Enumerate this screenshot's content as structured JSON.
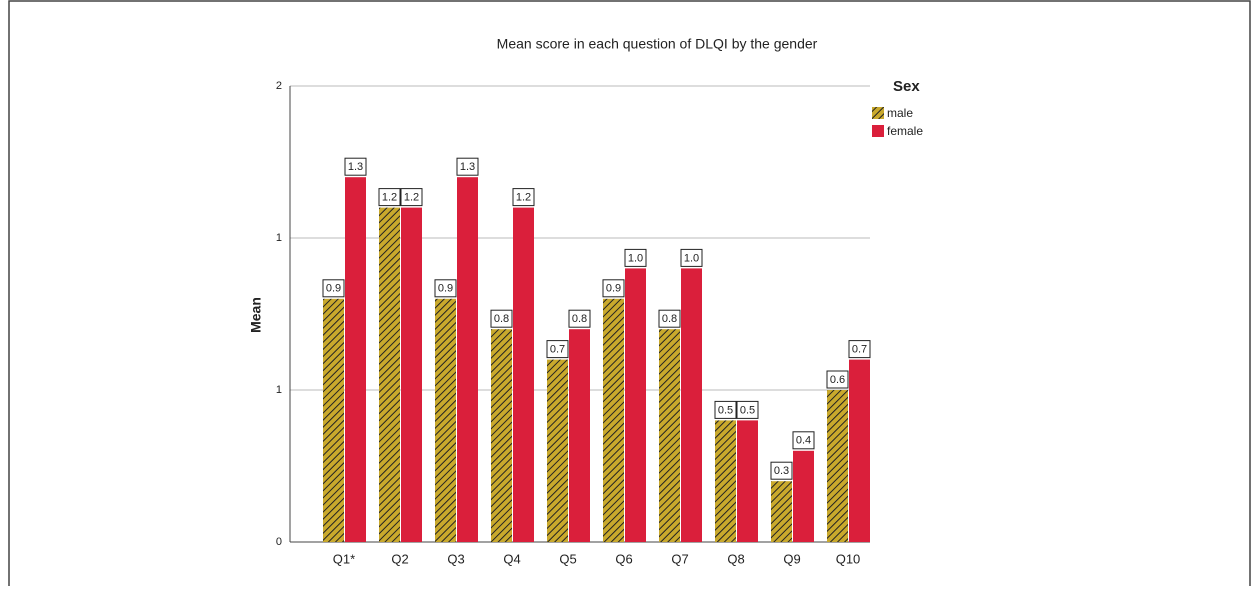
{
  "chart_data": {
    "type": "bar",
    "title": "Mean score in each question of DLQI by the gender",
    "y_label": "Mean",
    "legend_title": "Sex",
    "legend": "right",
    "grid": true,
    "categories": [
      "Q1*",
      "Q2",
      "Q3",
      "Q4",
      "Q5",
      "Q6",
      "Q7",
      "Q8",
      "Q9",
      "Q10"
    ],
    "series": [
      {
        "name": "male",
        "color": "#c9a92c",
        "pattern": "hatch",
        "values": [
          0.9,
          1.2,
          0.9,
          0.8,
          0.7,
          0.9,
          0.8,
          0.5,
          0.3,
          0.6
        ],
        "value_labels": [
          "0.9",
          "1.2",
          "0.9",
          "0.8",
          "0.7",
          "0.9",
          "0.8",
          "0.5",
          "0.3",
          "0.6"
        ]
      },
      {
        "name": "female",
        "color": "#da1f3b",
        "values": [
          1.3,
          1.2,
          1.3,
          1.2,
          0.8,
          1.0,
          1.0,
          0.5,
          0.4,
          0.7
        ],
        "value_labels": [
          "1.3",
          "1.2",
          "1.3",
          "1.2",
          "0.8",
          "1.0",
          "1.0",
          "0.5",
          "0.4",
          "0.7"
        ]
      }
    ],
    "ylim": [
      0.1,
      1.6
    ],
    "yticks": [
      {
        "value": 0.1,
        "label": "0"
      },
      {
        "value": 0.6,
        "label": "1"
      },
      {
        "value": 1.1,
        "label": "1"
      },
      {
        "value": 1.6,
        "label": "2"
      }
    ]
  }
}
